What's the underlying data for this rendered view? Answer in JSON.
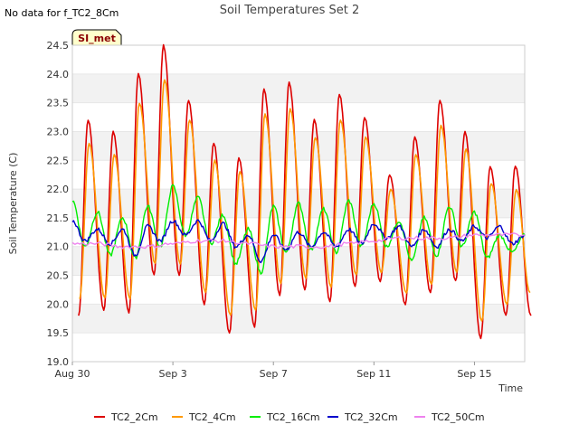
{
  "header": {
    "nodata_note": "No data for f_TC2_8Cm",
    "badge": "SI_met"
  },
  "chart_data": {
    "type": "line",
    "title": "Soil Temperatures Set 2",
    "xlabel": "Time",
    "ylabel": "Soil Temperature (C)",
    "ylim": [
      19.0,
      24.5
    ],
    "yticks": [
      19.0,
      19.5,
      20.0,
      20.5,
      21.0,
      21.5,
      22.0,
      22.5,
      23.0,
      23.5,
      24.0,
      24.5
    ],
    "xlim": [
      "2023-08-30",
      "2023-09-17"
    ],
    "xticks": [
      {
        "value": "2023-08-30",
        "label": "Aug 30"
      },
      {
        "value": "2023-09-03",
        "label": "Sep 3"
      },
      {
        "value": "2023-09-07",
        "label": "Sep 7"
      },
      {
        "value": "2023-09-11",
        "label": "Sep 11"
      },
      {
        "value": "2023-09-15",
        "label": "Sep 15"
      }
    ],
    "grid": "horizontal-bands",
    "legend_position": "bottom",
    "series": [
      {
        "name": "TC2_2Cm",
        "color": "#dd0000",
        "x": [
          "2023-08-30 06:00",
          "2023-08-30 15:00",
          "2023-08-31 06:00",
          "2023-08-31 15:00",
          "2023-09-01 06:00",
          "2023-09-01 15:00",
          "2023-09-02 06:00",
          "2023-09-02 15:00",
          "2023-09-03 06:00",
          "2023-09-03 15:00",
          "2023-09-04 06:00",
          "2023-09-04 15:00",
          "2023-09-05 06:00",
          "2023-09-05 15:00",
          "2023-09-06 06:00",
          "2023-09-06 15:00",
          "2023-09-07 06:00",
          "2023-09-07 15:00",
          "2023-09-08 06:00",
          "2023-09-08 15:00",
          "2023-09-09 06:00",
          "2023-09-09 15:00",
          "2023-09-10 06:00",
          "2023-09-10 15:00",
          "2023-09-11 06:00",
          "2023-09-11 15:00",
          "2023-09-12 06:00",
          "2023-09-12 15:00",
          "2023-09-13 06:00",
          "2023-09-13 15:00",
          "2023-09-14 06:00",
          "2023-09-14 15:00",
          "2023-09-15 06:00",
          "2023-09-15 15:00",
          "2023-09-16 06:00",
          "2023-09-16 15:00",
          "2023-09-17 06:00"
        ],
        "y": [
          19.8,
          23.2,
          19.9,
          23.0,
          19.85,
          24.0,
          20.5,
          24.5,
          20.5,
          23.55,
          20.0,
          22.8,
          19.5,
          22.55,
          19.6,
          23.75,
          20.15,
          23.85,
          20.25,
          23.2,
          20.05,
          23.65,
          20.3,
          23.25,
          20.4,
          22.25,
          20.0,
          22.9,
          20.2,
          23.55,
          20.4,
          23.0,
          19.4,
          22.4,
          19.8,
          22.4,
          19.8
        ]
      },
      {
        "name": "TC2_4Cm",
        "color": "#ff9900",
        "x": [
          "2023-08-30 07:00",
          "2023-08-30 16:00",
          "2023-08-31 07:00",
          "2023-08-31 16:00",
          "2023-09-01 07:00",
          "2023-09-01 16:00",
          "2023-09-02 07:00",
          "2023-09-02 16:00",
          "2023-09-03 07:00",
          "2023-09-03 16:00",
          "2023-09-04 07:00",
          "2023-09-04 16:00",
          "2023-09-05 07:00",
          "2023-09-05 16:00",
          "2023-09-06 07:00",
          "2023-09-06 16:00",
          "2023-09-07 07:00",
          "2023-09-07 16:00",
          "2023-09-08 07:00",
          "2023-09-08 16:00",
          "2023-09-09 07:00",
          "2023-09-09 16:00",
          "2023-09-10 07:00",
          "2023-09-10 16:00",
          "2023-09-11 07:00",
          "2023-09-11 16:00",
          "2023-09-12 07:00",
          "2023-09-12 16:00",
          "2023-09-13 07:00",
          "2023-09-13 16:00",
          "2023-09-14 07:00",
          "2023-09-14 16:00",
          "2023-09-15 07:00",
          "2023-09-15 16:00",
          "2023-09-16 07:00",
          "2023-09-16 16:00",
          "2023-09-17 05:00"
        ],
        "y": [
          20.1,
          22.8,
          20.1,
          22.6,
          20.1,
          23.5,
          20.7,
          23.9,
          20.7,
          23.2,
          20.2,
          22.5,
          19.8,
          22.3,
          19.9,
          23.3,
          20.35,
          23.4,
          20.45,
          22.9,
          20.3,
          23.2,
          20.5,
          22.9,
          20.55,
          22.0,
          20.2,
          22.6,
          20.35,
          23.1,
          20.55,
          22.7,
          19.7,
          22.1,
          20.0,
          22.0,
          20.2
        ]
      },
      {
        "name": "TC2_16Cm",
        "color": "#00ee00",
        "x": [
          "2023-08-30 00:00",
          "2023-08-30 12:00",
          "2023-08-31 00:00",
          "2023-08-31 12:00",
          "2023-09-01 00:00",
          "2023-09-01 12:00",
          "2023-09-02 00:00",
          "2023-09-02 12:00",
          "2023-09-03 00:00",
          "2023-09-03 12:00",
          "2023-09-04 00:00",
          "2023-09-04 12:00",
          "2023-09-05 00:00",
          "2023-09-05 12:00",
          "2023-09-06 00:00",
          "2023-09-06 12:00",
          "2023-09-07 00:00",
          "2023-09-07 12:00",
          "2023-09-08 00:00",
          "2023-09-08 12:00",
          "2023-09-09 00:00",
          "2023-09-09 12:00",
          "2023-09-10 00:00",
          "2023-09-10 12:00",
          "2023-09-11 00:00",
          "2023-09-11 12:00",
          "2023-09-12 00:00",
          "2023-09-12 12:00",
          "2023-09-13 00:00",
          "2023-09-13 12:00",
          "2023-09-14 00:00",
          "2023-09-14 12:00",
          "2023-09-15 00:00",
          "2023-09-15 12:00",
          "2023-09-16 00:00",
          "2023-09-16 12:00",
          "2023-09-17 00:00"
        ],
        "y": [
          21.8,
          21.0,
          21.6,
          20.85,
          21.5,
          20.8,
          21.7,
          21.0,
          22.05,
          21.2,
          21.85,
          21.05,
          21.55,
          20.7,
          21.3,
          20.55,
          21.7,
          20.9,
          21.75,
          20.95,
          21.65,
          20.9,
          21.8,
          21.0,
          21.75,
          21.0,
          21.45,
          20.75,
          21.5,
          20.85,
          21.7,
          21.0,
          21.6,
          20.8,
          21.2,
          20.9,
          21.2
        ]
      },
      {
        "name": "TC2_32Cm",
        "color": "#0000cc",
        "x": [
          "2023-08-30 00:00",
          "2023-08-30 12:00",
          "2023-08-31 00:00",
          "2023-08-31 12:00",
          "2023-09-01 00:00",
          "2023-09-01 12:00",
          "2023-09-02 00:00",
          "2023-09-02 12:00",
          "2023-09-03 00:00",
          "2023-09-03 12:00",
          "2023-09-04 00:00",
          "2023-09-04 12:00",
          "2023-09-05 00:00",
          "2023-09-05 12:00",
          "2023-09-06 00:00",
          "2023-09-06 12:00",
          "2023-09-07 00:00",
          "2023-09-07 12:00",
          "2023-09-08 00:00",
          "2023-09-08 12:00",
          "2023-09-09 00:00",
          "2023-09-09 12:00",
          "2023-09-10 00:00",
          "2023-09-10 12:00",
          "2023-09-11 00:00",
          "2023-09-11 12:00",
          "2023-09-12 00:00",
          "2023-09-12 12:00",
          "2023-09-13 00:00",
          "2023-09-13 12:00",
          "2023-09-14 00:00",
          "2023-09-14 12:00",
          "2023-09-15 00:00",
          "2023-09-15 12:00",
          "2023-09-16 00:00",
          "2023-09-16 12:00",
          "2023-09-17 00:00"
        ],
        "y": [
          21.45,
          21.1,
          21.3,
          21.05,
          21.3,
          20.85,
          21.35,
          21.1,
          21.45,
          21.2,
          21.45,
          21.1,
          21.4,
          21.0,
          21.2,
          20.75,
          21.2,
          20.95,
          21.25,
          21.0,
          21.25,
          21.0,
          21.3,
          21.05,
          21.4,
          21.15,
          21.35,
          21.0,
          21.3,
          21.0,
          21.3,
          21.1,
          21.35,
          21.15,
          21.35,
          21.05,
          21.2
        ]
      },
      {
        "name": "TC2_50Cm",
        "color": "#ee82ee",
        "x": [
          "2023-08-30 00:00",
          "2023-08-31 00:00",
          "2023-09-01 00:00",
          "2023-09-02 00:00",
          "2023-09-03 00:00",
          "2023-09-04 00:00",
          "2023-09-05 00:00",
          "2023-09-06 00:00",
          "2023-09-07 00:00",
          "2023-09-08 00:00",
          "2023-09-09 00:00",
          "2023-09-10 00:00",
          "2023-09-11 00:00",
          "2023-09-12 00:00",
          "2023-09-13 00:00",
          "2023-09-14 00:00",
          "2023-09-15 00:00",
          "2023-09-16 00:00",
          "2023-09-17 00:00"
        ],
        "y": [
          21.05,
          21.05,
          21.0,
          21.0,
          21.05,
          21.1,
          21.1,
          21.05,
          21.0,
          21.0,
          21.0,
          21.05,
          21.1,
          21.15,
          21.15,
          21.15,
          21.2,
          21.2,
          21.2
        ]
      }
    ]
  }
}
